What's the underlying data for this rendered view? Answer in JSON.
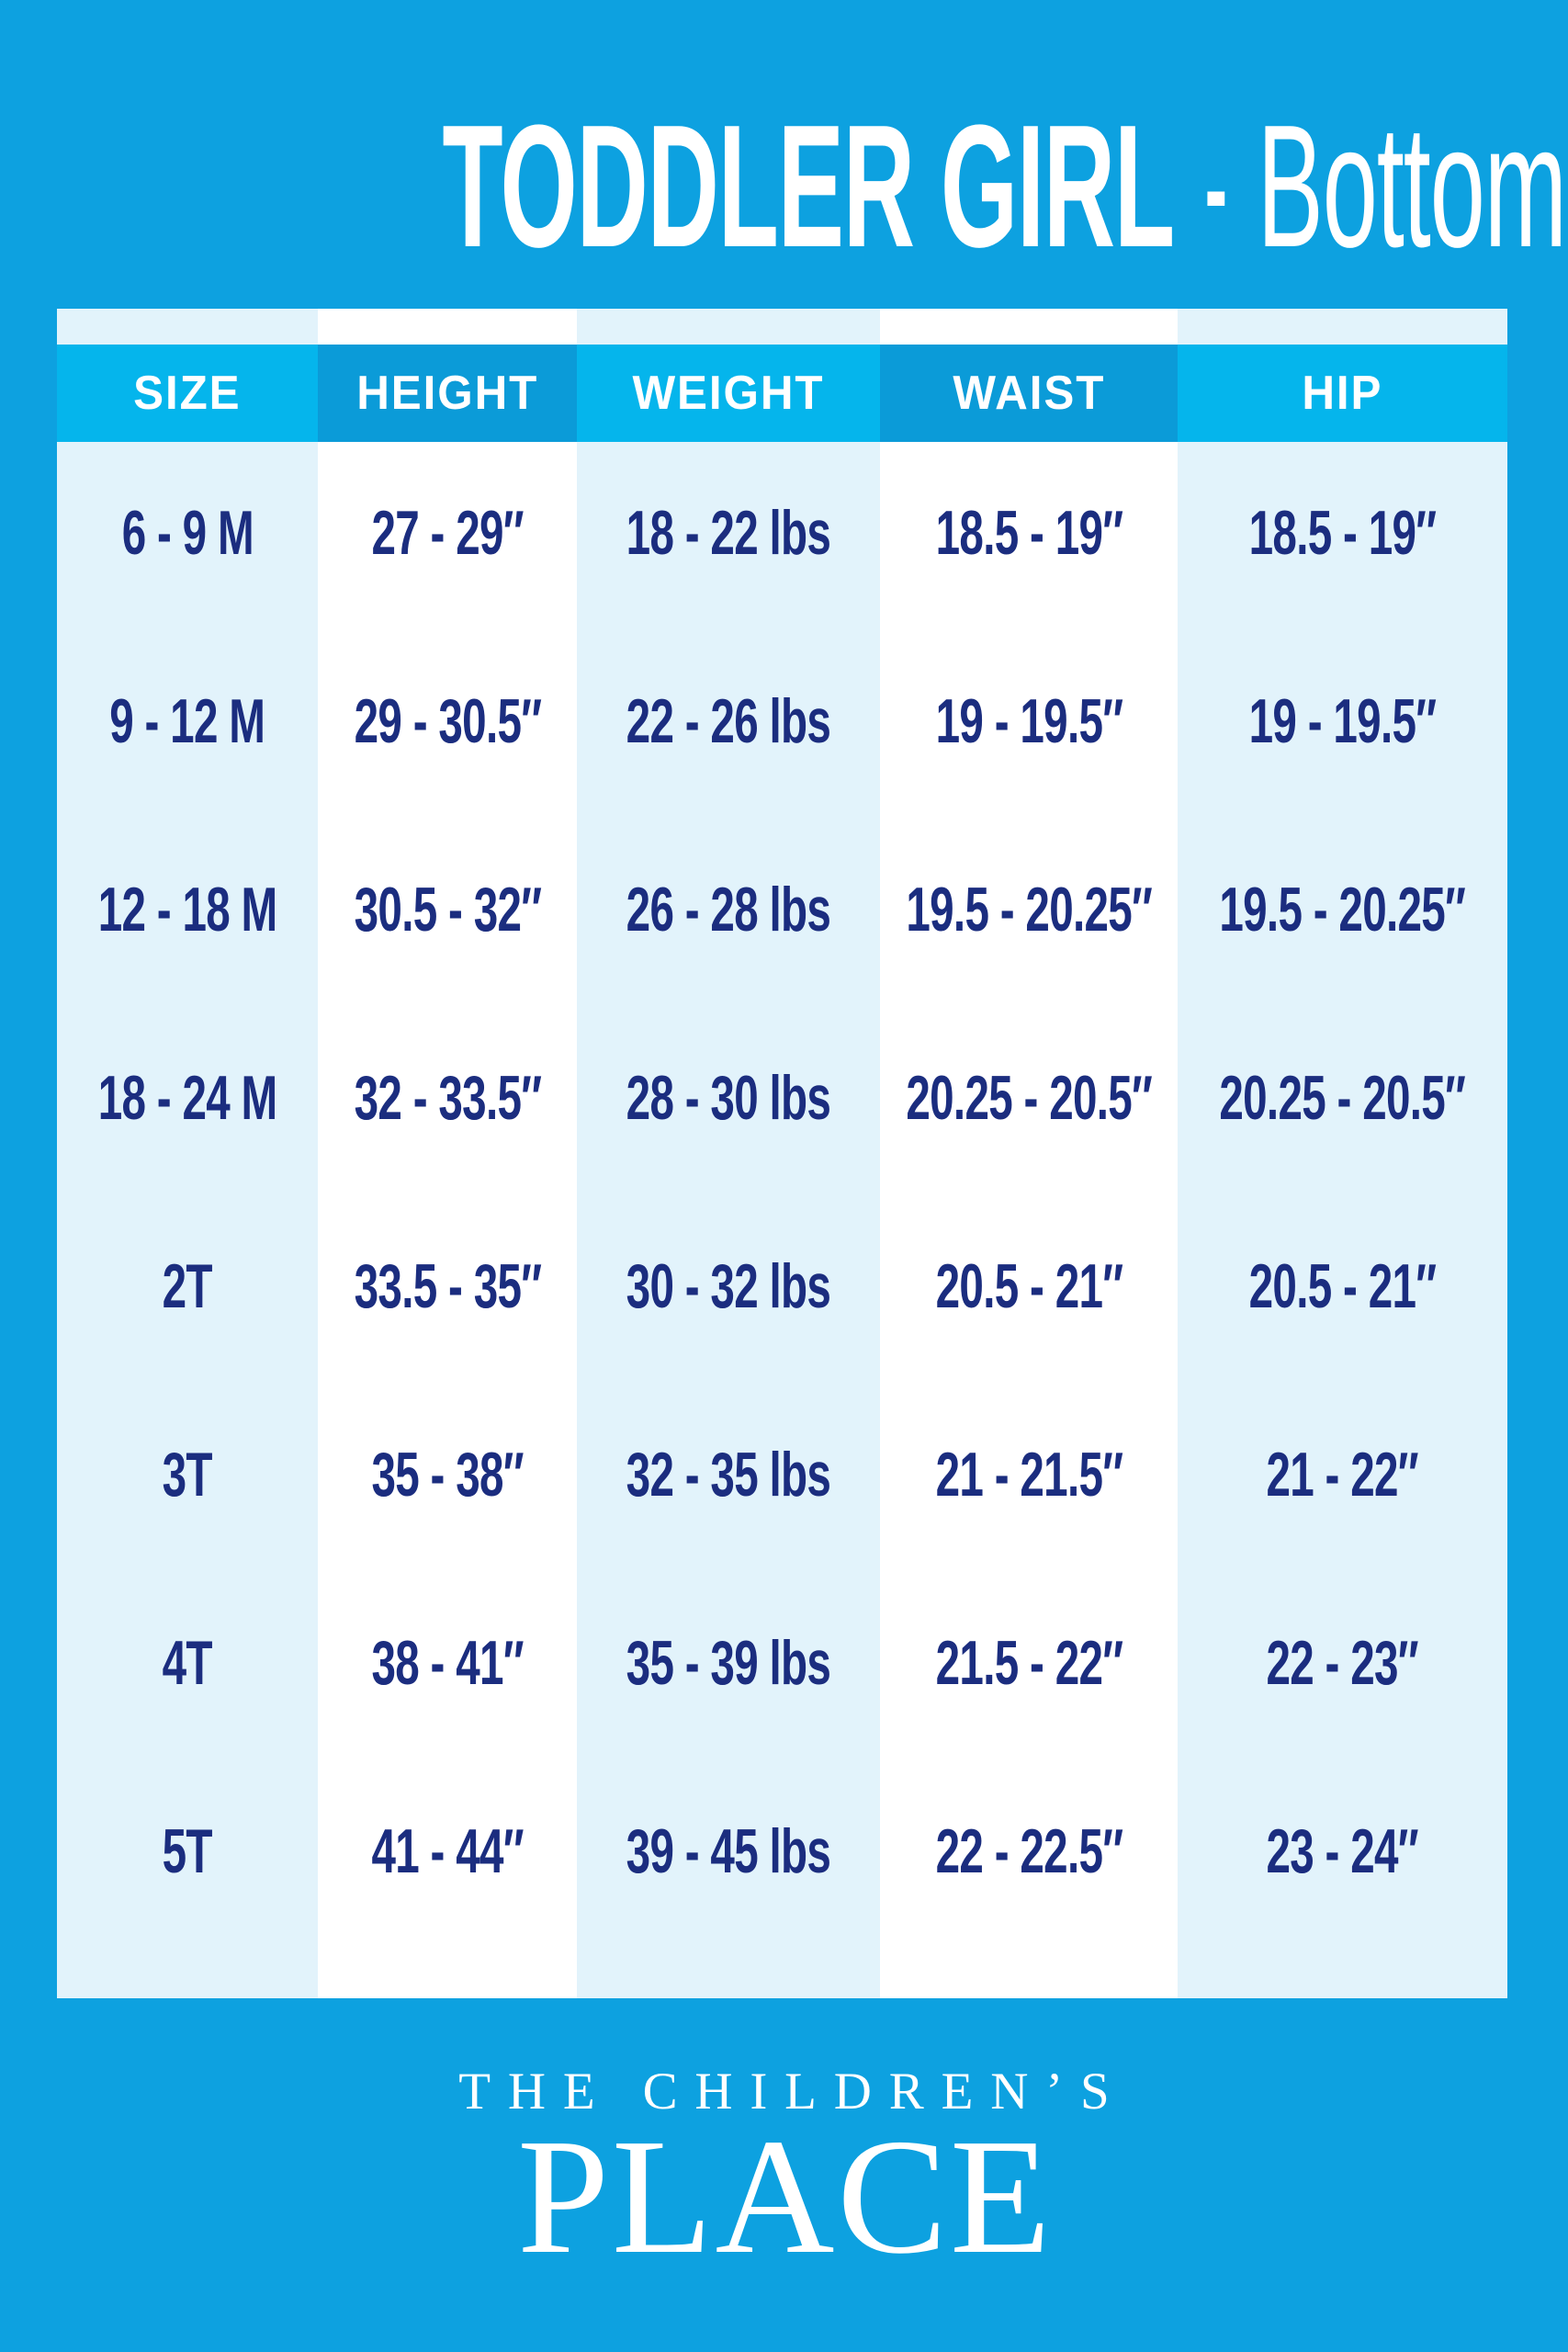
{
  "page": {
    "background_color": "#0DA1E0",
    "accent_header_light": "#05B5EC",
    "accent_header_dark": "#0B9BD8",
    "column_tint": "#E2F3FB",
    "data_text_color": "#1B2D7F",
    "title": {
      "main": "TODDLER GIRL",
      "separator": "-",
      "sub": "Bottoms"
    },
    "logo": {
      "line1": "THE CHILDREN’S",
      "line2": "PLACE"
    }
  },
  "chart_data": {
    "type": "table",
    "title": "TODDLER GIRL - Bottoms",
    "columns": [
      "SIZE",
      "HEIGHT",
      "WEIGHT",
      "WAIST",
      "HIP"
    ],
    "rows": [
      [
        "6 - 9 M",
        "27 - 29″",
        "18 - 22 lbs",
        "18.5 - 19″",
        "18.5 - 19″"
      ],
      [
        "9 - 12 M",
        "29 - 30.5″",
        "22 - 26 lbs",
        "19 - 19.5″",
        "19 - 19.5″"
      ],
      [
        "12 - 18 M",
        "30.5 - 32″",
        "26 - 28 lbs",
        "19.5 - 20.25″",
        "19.5 - 20.25″"
      ],
      [
        "18 - 24 M",
        "32 - 33.5″",
        "28 - 30 lbs",
        "20.25 - 20.5″",
        "20.25 - 20.5″"
      ],
      [
        "2T",
        "33.5 - 35″",
        "30 - 32 lbs",
        "20.5 - 21″",
        "20.5 - 21″"
      ],
      [
        "3T",
        "35 - 38″",
        "32 - 35 lbs",
        "21 - 21.5″",
        "21 - 22″"
      ],
      [
        "4T",
        "38 - 41″",
        "35 - 39 lbs",
        "21.5 - 22″",
        "22 - 23″"
      ],
      [
        "5T",
        "41 - 44″",
        "39 - 45 lbs",
        "22 - 22.5″",
        "23 - 24″"
      ]
    ]
  }
}
